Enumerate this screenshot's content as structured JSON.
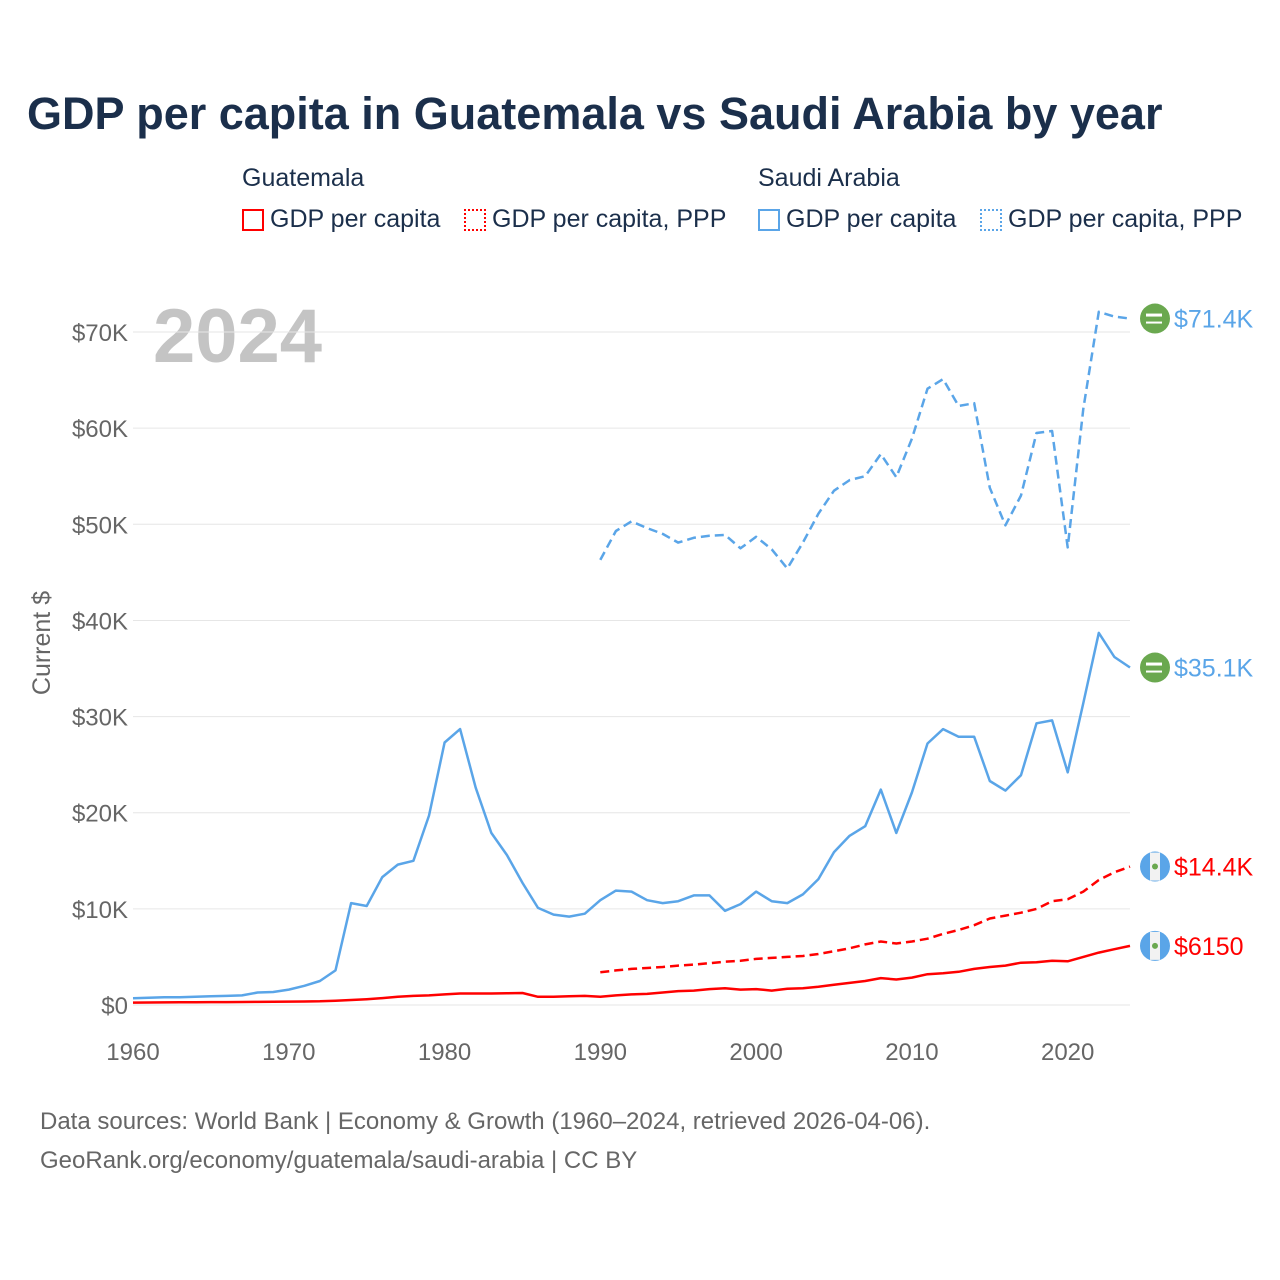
{
  "title": "GDP per capita in Guatemala vs Saudi Arabia by year",
  "legend": {
    "groups": [
      {
        "country": "Guatemala",
        "items": [
          "GDP per capita",
          "GDP per capita, PPP"
        ],
        "color": "#ff0000"
      },
      {
        "country": "Saudi Arabia",
        "items": [
          "GDP per capita",
          "GDP per capita, PPP"
        ],
        "color": "#5aa5e8"
      }
    ]
  },
  "year_watermark": "2024",
  "footer": {
    "line1": "Data sources: World Bank | Economy & Growth (1960–2024, retrieved 2026-04-06).",
    "line2": "GeoRank.org/economy/guatemala/saudi-arabia | CC BY"
  },
  "chart_data": {
    "type": "line",
    "title": "GDP per capita in Guatemala vs Saudi Arabia by year",
    "xlabel": "",
    "ylabel": "Current $",
    "xlim": [
      1960,
      2024
    ],
    "ylim": [
      0,
      70000
    ],
    "x_ticks": [
      "1960",
      "1970",
      "1980",
      "1990",
      "2000",
      "2010",
      "2020"
    ],
    "y_ticks": [
      "$0",
      "$10K",
      "$20K",
      "$30K",
      "$40K",
      "$50K",
      "$60K",
      "$70K"
    ],
    "grid": true,
    "legend_position": "top",
    "units": "thousand USD",
    "series": [
      {
        "name": "Saudi Arabia GDP per capita, PPP",
        "color": "#5aa5e8",
        "dash": true,
        "end_label": "$71.4K",
        "flag": "saudi-arabia-flag-icon",
        "start": 1990,
        "values": [
          46.3,
          49.3,
          50.3,
          49.6,
          49.0,
          48.1,
          48.6,
          48.8,
          48.9,
          47.5,
          48.7,
          47.4,
          45.4,
          48.1,
          51.1,
          53.5,
          54.6,
          55.0,
          57.3,
          54.9,
          58.9,
          64.1,
          65.1,
          62.3,
          62.6,
          53.8,
          49.9,
          53.0,
          59.5,
          59.7,
          47.6,
          62.0,
          72.1,
          71.6,
          71.4
        ]
      },
      {
        "name": "Saudi Arabia GDP per capita",
        "color": "#5aa5e8",
        "dash": false,
        "end_label": "$35.1K",
        "flag": "saudi-arabia-flag-icon",
        "start": 1960,
        "values": [
          0.7,
          0.75,
          0.8,
          0.8,
          0.85,
          0.9,
          0.95,
          1.0,
          1.3,
          1.35,
          1.6,
          2.0,
          2.5,
          3.6,
          10.6,
          10.3,
          13.3,
          14.6,
          15.0,
          19.7,
          27.3,
          28.7,
          22.6,
          17.9,
          15.6,
          12.7,
          10.1,
          9.4,
          9.2,
          9.5,
          10.9,
          11.9,
          11.8,
          10.9,
          10.6,
          10.8,
          11.4,
          11.4,
          9.8,
          10.5,
          11.8,
          10.8,
          10.6,
          11.5,
          13.1,
          15.9,
          17.6,
          18.6,
          22.4,
          17.9,
          22.1,
          27.2,
          28.7,
          27.9,
          27.9,
          23.3,
          22.3,
          23.9,
          29.3,
          29.6,
          24.2,
          31.4,
          38.7,
          36.2,
          35.1
        ]
      },
      {
        "name": "Guatemala GDP per capita, PPP",
        "color": "#ff0000",
        "dash": true,
        "end_label": "$14.4K",
        "flag": "guatemala-flag-icon",
        "start": 1990,
        "values": [
          3.4,
          3.6,
          3.75,
          3.85,
          3.95,
          4.1,
          4.2,
          4.35,
          4.5,
          4.6,
          4.8,
          4.9,
          5.0,
          5.1,
          5.3,
          5.6,
          5.9,
          6.3,
          6.6,
          6.4,
          6.6,
          6.9,
          7.4,
          7.8,
          8.3,
          9.0,
          9.3,
          9.6,
          10.0,
          10.8,
          11.0,
          11.8,
          13.0,
          13.8,
          14.4
        ]
      },
      {
        "name": "Guatemala GDP per capita",
        "color": "#ff0000",
        "dash": false,
        "end_label": "$6150",
        "flag": "guatemala-flag-icon",
        "start": 1960,
        "values": [
          0.25,
          0.26,
          0.27,
          0.28,
          0.29,
          0.3,
          0.3,
          0.31,
          0.32,
          0.33,
          0.35,
          0.36,
          0.38,
          0.45,
          0.52,
          0.6,
          0.72,
          0.85,
          0.95,
          1.0,
          1.1,
          1.2,
          1.2,
          1.2,
          1.22,
          1.25,
          0.85,
          0.85,
          0.9,
          0.95,
          0.85,
          1.0,
          1.1,
          1.15,
          1.3,
          1.45,
          1.5,
          1.65,
          1.75,
          1.6,
          1.65,
          1.5,
          1.7,
          1.75,
          1.9,
          2.1,
          2.3,
          2.5,
          2.8,
          2.65,
          2.85,
          3.2,
          3.3,
          3.45,
          3.75,
          3.95,
          4.1,
          4.4,
          4.45,
          4.6,
          4.55,
          5.0,
          5.45,
          5.8,
          6.15
        ]
      }
    ]
  }
}
